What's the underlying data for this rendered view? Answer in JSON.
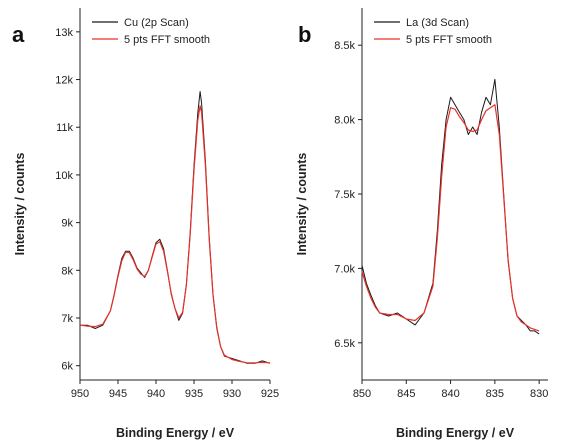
{
  "chart_data": [
    {
      "type": "line",
      "panel_label": "a",
      "xlabel": "Binding Energy / eV",
      "ylabel": "Intensity / counts",
      "xlim": [
        950,
        925
      ],
      "ylim": [
        5700,
        13500
      ],
      "x_reversed": true,
      "x_ticks": [
        950,
        945,
        940,
        935,
        930,
        925
      ],
      "x_tick_labels": [
        "950",
        "945",
        "940",
        "935",
        "930",
        "925"
      ],
      "y_ticks": [
        6000,
        7000,
        8000,
        9000,
        10000,
        11000,
        12000,
        13000
      ],
      "y_tick_labels": [
        "6k",
        "7k",
        "8k",
        "9k",
        "10k",
        "11k",
        "12k",
        "13k"
      ],
      "legend_position": "top-right",
      "colors": {
        "raw": "#1a1a1a",
        "smooth": "#e8312a"
      },
      "series": [
        {
          "name": "Cu (2p Scan)",
          "role": "raw",
          "x": [
            950,
            949,
            948,
            947,
            946,
            945.5,
            945,
            944.5,
            944,
            943.5,
            943,
            942.5,
            942,
            941.5,
            941,
            940.5,
            940,
            939.5,
            939,
            938.5,
            938,
            937.5,
            937,
            936.5,
            936,
            935.5,
            935,
            934.5,
            934.2,
            934,
            933.5,
            933,
            932.5,
            932,
            931.5,
            931,
            930,
            929,
            928,
            927,
            926,
            925
          ],
          "values": [
            6850,
            6850,
            6780,
            6850,
            7150,
            7500,
            7900,
            8250,
            8400,
            8400,
            8250,
            8050,
            7950,
            7850,
            8000,
            8300,
            8580,
            8650,
            8450,
            8000,
            7500,
            7200,
            6950,
            7100,
            7700,
            8800,
            10200,
            11300,
            11750,
            11500,
            10300,
            8700,
            7500,
            6800,
            6400,
            6200,
            6150,
            6100,
            6050,
            6050,
            6100,
            6050
          ]
        },
        {
          "name": "5 pts FFT smooth",
          "role": "smooth",
          "x": [
            950,
            949,
            948,
            947,
            946,
            945.5,
            945,
            944.5,
            944,
            943.5,
            943,
            942.5,
            942,
            941.5,
            941,
            940.5,
            940,
            939.5,
            939,
            938.5,
            938,
            937.5,
            937,
            936.5,
            936,
            935.5,
            935,
            934.5,
            934.2,
            934,
            933.5,
            933,
            932.5,
            932,
            931.5,
            931,
            930,
            929,
            928,
            927,
            926,
            925
          ],
          "values": [
            6850,
            6830,
            6820,
            6870,
            7150,
            7480,
            7870,
            8200,
            8380,
            8370,
            8220,
            8030,
            7920,
            7870,
            8000,
            8280,
            8550,
            8600,
            8400,
            7980,
            7520,
            7200,
            7000,
            7120,
            7700,
            8750,
            10100,
            11150,
            11450,
            11300,
            10200,
            8650,
            7480,
            6780,
            6400,
            6220,
            6130,
            6090,
            6060,
            6060,
            6070,
            6060
          ]
        }
      ]
    },
    {
      "type": "line",
      "panel_label": "b",
      "xlabel": "Binding Energy / eV",
      "ylabel": "Intensity / counts",
      "xlim": [
        850,
        829
      ],
      "ylim": [
        6250,
        8750
      ],
      "x_reversed": true,
      "x_ticks": [
        850,
        845,
        840,
        835,
        830
      ],
      "x_tick_labels": [
        "850",
        "845",
        "840",
        "835",
        "830"
      ],
      "y_ticks": [
        6500,
        7000,
        7500,
        8000,
        8500
      ],
      "y_tick_labels": [
        "6.5k",
        "7.0k",
        "7.5k",
        "8.0k",
        "8.5k"
      ],
      "legend_position": "top-right",
      "colors": {
        "raw": "#1a1a1a",
        "smooth": "#e8312a"
      },
      "series": [
        {
          "name": "La (3d Scan)",
          "role": "raw",
          "x": [
            850,
            849.5,
            849,
            848.5,
            848,
            847,
            846,
            845,
            844,
            843,
            842,
            841.5,
            841,
            840.5,
            840,
            839.5,
            839,
            838.5,
            838,
            837.5,
            837,
            836.5,
            836,
            835.5,
            835,
            834.5,
            834,
            833.5,
            833,
            832.5,
            832,
            831.5,
            831,
            830.5,
            830
          ],
          "values": [
            7020,
            6900,
            6820,
            6750,
            6700,
            6680,
            6700,
            6660,
            6620,
            6700,
            6900,
            7250,
            7700,
            8000,
            8150,
            8100,
            8050,
            8000,
            7900,
            7950,
            7900,
            8050,
            8150,
            8100,
            8270,
            7950,
            7500,
            7050,
            6800,
            6680,
            6650,
            6620,
            6580,
            6580,
            6560
          ]
        },
        {
          "name": "5 pts FFT smooth",
          "role": "smooth",
          "x": [
            850,
            849.5,
            849,
            848.5,
            848,
            847,
            846,
            845,
            844,
            843,
            842,
            841.5,
            841,
            840.5,
            840,
            839.5,
            839,
            838.5,
            838,
            837.5,
            837,
            836.5,
            836,
            835.5,
            835,
            834.5,
            834,
            833.5,
            833,
            832.5,
            832,
            831.5,
            831,
            830.5,
            830
          ],
          "values": [
            6980,
            6880,
            6800,
            6740,
            6700,
            6690,
            6690,
            6660,
            6650,
            6700,
            6880,
            7200,
            7620,
            7950,
            8080,
            8070,
            8020,
            7980,
            7930,
            7920,
            7930,
            8000,
            8060,
            8080,
            8100,
            7900,
            7480,
            7060,
            6800,
            6680,
            6640,
            6620,
            6600,
            6590,
            6580
          ]
        }
      ]
    }
  ]
}
